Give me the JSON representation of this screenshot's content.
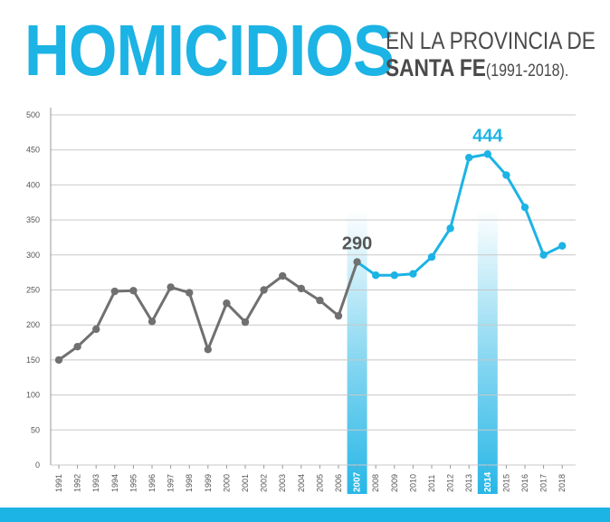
{
  "header": {
    "title": "HOMICIDIOS",
    "subtitle_line1": "EN LA PROVINCIA DE",
    "subtitle_place": "SANTA FE",
    "subtitle_years": "(1991-2018)."
  },
  "colors": {
    "accent": "#1cb3e5",
    "gray_series": "#707070",
    "highlight": "#1cb3e5",
    "grid": "#c8c8c8"
  },
  "chart_data": {
    "type": "line",
    "title": "HOMICIDIOS EN LA PROVINCIA DE SANTA FE (1991-2018).",
    "xlabel": "",
    "ylabel": "",
    "ylim": [
      0,
      500
    ],
    "yticks": [
      0,
      50,
      100,
      150,
      200,
      250,
      300,
      350,
      400,
      450,
      500
    ],
    "grid": true,
    "x": [
      "1991",
      "1992",
      "1993",
      "1994",
      "1995",
      "1996",
      "1997",
      "1998",
      "1999",
      "2000",
      "2001",
      "2002",
      "2003",
      "2004",
      "2005",
      "2006",
      "2007",
      "2008",
      "2009",
      "2010",
      "2011",
      "2012",
      "2013",
      "2014",
      "2015",
      "2016",
      "2017",
      "2018"
    ],
    "values": [
      150,
      169,
      194,
      248,
      249,
      205,
      254,
      246,
      165,
      231,
      204,
      250,
      270,
      252,
      235,
      213,
      290,
      271,
      271,
      273,
      297,
      338,
      439,
      444,
      414,
      368,
      300,
      313
    ],
    "highlights": [
      {
        "year": "2007",
        "label": "290"
      },
      {
        "year": "2014",
        "label": "444"
      }
    ]
  }
}
